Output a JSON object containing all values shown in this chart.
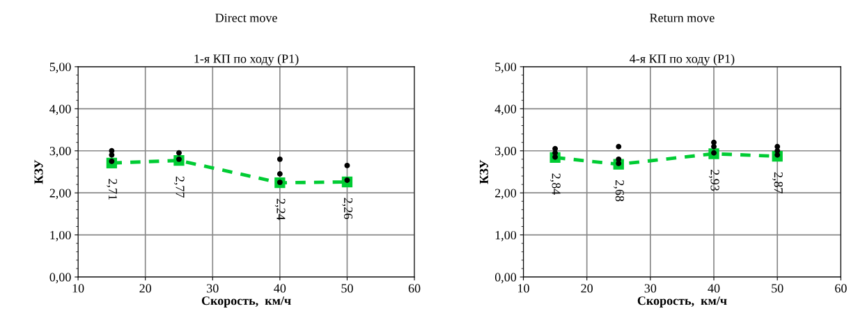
{
  "chart_data": [
    {
      "type": "line",
      "title": "Direct move",
      "subtitle": "1-я КП по ходу (Р1)",
      "xlabel": "Скорость,  км/ч",
      "ylabel": "КЗУ",
      "xlim": [
        10,
        60
      ],
      "xticks": [
        10,
        20,
        30,
        40,
        50,
        60
      ],
      "ylim": [
        0,
        5
      ],
      "yticks": [
        {
          "value": 0,
          "label": "0,00"
        },
        {
          "value": 1,
          "label": "1,00"
        },
        {
          "value": 2,
          "label": "2,00"
        },
        {
          "value": 3,
          "label": "3,00"
        },
        {
          "value": 4,
          "label": "4,00"
        },
        {
          "value": 5,
          "label": "5,00"
        }
      ],
      "grid": true,
      "legend": false,
      "series": [
        {
          "type": "scatter",
          "color": "#000000",
          "marker": "circle",
          "x": [
            15,
            15,
            15,
            25,
            25,
            40,
            40,
            40,
            50,
            50
          ],
          "values": [
            3.0,
            2.9,
            2.75,
            2.95,
            2.8,
            2.8,
            2.45,
            2.25,
            2.65,
            2.3
          ]
        },
        {
          "type": "line",
          "color": "#00cc33",
          "marker": "square",
          "line_style": "dashed",
          "x": [
            15,
            25,
            40,
            50
          ],
          "values": [
            2.71,
            2.77,
            2.24,
            2.26
          ],
          "value_labels": [
            "2,71",
            "2,77",
            "2,24",
            "2,26"
          ]
        }
      ]
    },
    {
      "type": "line",
      "title": "Return move",
      "subtitle": "4-я КП по ходу (Р1)",
      "xlabel": "Скорость,  км/ч",
      "ylabel": "КЗУ",
      "xlim": [
        10,
        60
      ],
      "xticks": [
        10,
        20,
        30,
        40,
        50,
        60
      ],
      "ylim": [
        0,
        5
      ],
      "yticks": [
        {
          "value": 0,
          "label": "0,00"
        },
        {
          "value": 1,
          "label": "1,00"
        },
        {
          "value": 2,
          "label": "2,00"
        },
        {
          "value": 3,
          "label": "3,00"
        },
        {
          "value": 4,
          "label": "4,00"
        },
        {
          "value": 5,
          "label": "5,00"
        }
      ],
      "grid": true,
      "legend": false,
      "series": [
        {
          "type": "scatter",
          "color": "#000000",
          "marker": "circle",
          "x": [
            15,
            15,
            15,
            25,
            25,
            25,
            40,
            40,
            40,
            50,
            50,
            50
          ],
          "values": [
            3.05,
            2.95,
            2.85,
            3.1,
            2.8,
            2.7,
            3.2,
            3.1,
            2.95,
            3.1,
            3.0,
            2.9
          ]
        },
        {
          "type": "line",
          "color": "#00cc33",
          "marker": "square",
          "line_style": "dashed",
          "x": [
            15,
            25,
            40,
            50
          ],
          "values": [
            2.84,
            2.68,
            2.93,
            2.87
          ],
          "value_labels": [
            "2,84",
            "2,68",
            "2,93",
            "2,87"
          ]
        }
      ]
    }
  ]
}
